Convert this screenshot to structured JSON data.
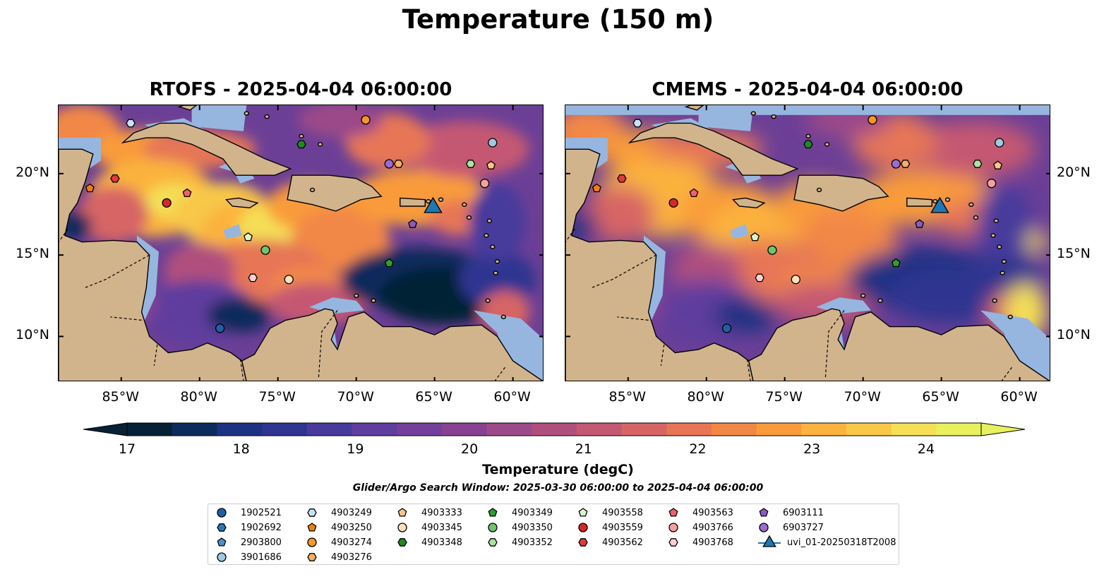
{
  "suptitle": "Temperature (150 m)",
  "panels": [
    {
      "title": "RTOFS - 2025-04-04 06:00:00"
    },
    {
      "title": "CMEMS - 2025-04-04 06:00:00"
    }
  ],
  "map_extent": {
    "lon_min": -89,
    "lon_max": -58,
    "lat_min": 7.2,
    "lat_max": 24.2
  },
  "lon_ticks": [
    {
      "value": -85,
      "label": "85°W"
    },
    {
      "value": -80,
      "label": "80°W"
    },
    {
      "value": -75,
      "label": "75°W"
    },
    {
      "value": -70,
      "label": "70°W"
    },
    {
      "value": -65,
      "label": "65°W"
    },
    {
      "value": -60,
      "label": "60°W"
    }
  ],
  "lat_ticks": [
    {
      "value": 20,
      "label": "20°N"
    },
    {
      "value": 15,
      "label": "15°N"
    },
    {
      "value": 10,
      "label": "10°N"
    }
  ],
  "colorbar": {
    "label": "Temperature (degC)",
    "min": 16.6,
    "max": 24.9,
    "ticks": [
      "17",
      "18",
      "19",
      "20",
      "21",
      "22",
      "23",
      "24"
    ],
    "colors": [
      "#062136",
      "#0c2c5c",
      "#1d3382",
      "#2e3490",
      "#473a9c",
      "#5e3e9e",
      "#743f9a",
      "#874392",
      "#9c4a89",
      "#b04f7e",
      "#c45872",
      "#d76565",
      "#e67656",
      "#f28846",
      "#f99b3b",
      "#fbb23e",
      "#f8c848",
      "#f4df57",
      "#e8f05d"
    ]
  },
  "window_text": "Glider/Argo Search Window: 2025-03-30 06:00:00 to 2025-04-04 06:00:00",
  "colors": {
    "land": "#d2b48c",
    "shallow": "#96b6e0",
    "ocean_base": "#6c3f96"
  },
  "legend": [
    {
      "label": "1902521",
      "shape": "circle",
      "color": "#1f5fa8"
    },
    {
      "label": "1902692",
      "shape": "hexagon",
      "color": "#2a78b8"
    },
    {
      "label": "2903800",
      "shape": "pentagon",
      "color": "#4a94c8"
    },
    {
      "label": "3901686",
      "shape": "circle",
      "color": "#9ecae1"
    },
    {
      "label": "4903249",
      "shape": "hexagon",
      "color": "#c6e4f7"
    },
    {
      "label": "4903250",
      "shape": "pentagon",
      "color": "#f07f0a"
    },
    {
      "label": "4903274",
      "shape": "circle",
      "color": "#f5962a"
    },
    {
      "label": "4903276",
      "shape": "hexagon",
      "color": "#f8ae62"
    },
    {
      "label": "4903333",
      "shape": "pentagon",
      "color": "#fbc486"
    },
    {
      "label": "4903345",
      "shape": "circle",
      "color": "#fde0bc"
    },
    {
      "label": "4903348",
      "shape": "hexagon",
      "color": "#1f8a1f"
    },
    {
      "label": "4903349",
      "shape": "pentagon",
      "color": "#2ca02c"
    },
    {
      "label": "4903350",
      "shape": "circle",
      "color": "#6cc66c"
    },
    {
      "label": "4903352",
      "shape": "hexagon",
      "color": "#a8e4a0"
    },
    {
      "label": "4903558",
      "shape": "pentagon",
      "color": "#d8f8cc"
    },
    {
      "label": "4903559",
      "shape": "circle",
      "color": "#d62728"
    },
    {
      "label": "4903562",
      "shape": "hexagon",
      "color": "#e23a3a"
    },
    {
      "label": "4903563",
      "shape": "pentagon",
      "color": "#f06070"
    },
    {
      "label": "4903766",
      "shape": "circle",
      "color": "#f5a0a0"
    },
    {
      "label": "4903768",
      "shape": "hexagon",
      "color": "#fbd0d4"
    },
    {
      "label": "6903111",
      "shape": "pentagon",
      "color": "#8a5cc0"
    },
    {
      "label": "6903727",
      "shape": "circle",
      "color": "#9b6cd0"
    },
    {
      "label": "uvi_01-20250318T2008",
      "shape": "triangle",
      "color": "#1f77b4"
    }
  ],
  "float_positions": [
    {
      "id": "4903249",
      "lon": -84.4,
      "lat": 23.1
    },
    {
      "id": "4903348",
      "lon": -73.5,
      "lat": 21.8
    },
    {
      "id": "4903274",
      "lon": -69.4,
      "lat": 23.3
    },
    {
      "id": "3901686",
      "lon": -61.3,
      "lat": 21.9
    },
    {
      "id": "6903727",
      "lon": -67.9,
      "lat": 20.6
    },
    {
      "id": "4903276",
      "lon": -67.3,
      "lat": 20.6
    },
    {
      "id": "4903352",
      "lon": -62.7,
      "lat": 20.6
    },
    {
      "id": "4903333",
      "lon": -61.4,
      "lat": 20.5
    },
    {
      "id": "4903766",
      "lon": -61.8,
      "lat": 19.4
    },
    {
      "id": "4903562",
      "lon": -85.4,
      "lat": 19.7
    },
    {
      "id": "4903250",
      "lon": -87.0,
      "lat": 19.1
    },
    {
      "id": "4903563",
      "lon": -80.8,
      "lat": 18.8
    },
    {
      "id": "4903559",
      "lon": -82.1,
      "lat": 18.2
    },
    {
      "id": "6903111",
      "lon": -66.4,
      "lat": 16.9
    },
    {
      "id": "4903558",
      "lon": -76.9,
      "lat": 16.1
    },
    {
      "id": "4903350",
      "lon": -75.8,
      "lat": 15.3
    },
    {
      "id": "4903349",
      "lon": -67.9,
      "lat": 14.5
    },
    {
      "id": "4903768",
      "lon": -76.6,
      "lat": 13.6
    },
    {
      "id": "4903345",
      "lon": -74.3,
      "lat": 13.5
    },
    {
      "id": "1902521",
      "lon": -78.7,
      "lat": 10.5
    },
    {
      "id": "uvi_01-20250318T2008",
      "lon": -65.1,
      "lat": 18.0
    }
  ]
}
